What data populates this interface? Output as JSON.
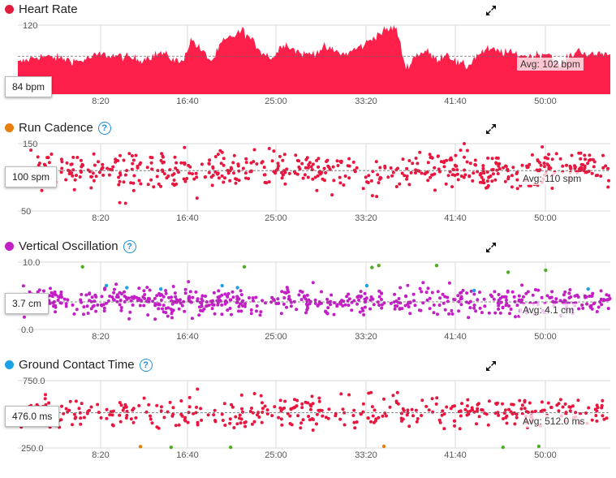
{
  "panels": [
    {
      "title": "Heart Rate",
      "dot_color": "#e01e3c",
      "help": false,
      "y_top": "120",
      "y_bottom": "80",
      "current": "84 bpm",
      "avg": "Avg: 102 bpm",
      "x_ticks": [
        "8:20",
        "16:40",
        "25:00",
        "33:20",
        "41:40",
        "50:00"
      ]
    },
    {
      "title": "Run Cadence",
      "dot_color": "#e87e0c",
      "help": true,
      "y_top": "150",
      "y_bottom": "50",
      "current": "100 spm",
      "avg": "Avg: 110 spm",
      "x_ticks": [
        "8:20",
        "16:40",
        "25:00",
        "33:20",
        "41:40",
        "50:00"
      ]
    },
    {
      "title": "Vertical Oscillation",
      "dot_color": "#c21fc4",
      "help": true,
      "y_top": "10.0",
      "y_bottom": "0.0",
      "current": "3.7 cm",
      "avg": "Avg: 4.1 cm",
      "x_ticks": [
        "8:20",
        "16:40",
        "25:00",
        "33:20",
        "41:40",
        "50:00"
      ]
    },
    {
      "title": "Ground Contact Time",
      "dot_color": "#1ba1e6",
      "help": true,
      "y_top": "750.0",
      "y_bottom": "250.0",
      "current": "476.0 ms",
      "avg": "Avg: 512.0 ms",
      "x_ticks": [
        "8:20",
        "16:40",
        "25:00",
        "33:20",
        "41:40",
        "50:00"
      ]
    }
  ],
  "colors": {
    "hr_fill": "#ff1f4b",
    "cadence": "#e8173f",
    "vo": "#c21fc4",
    "vo_blue": "#1ba1e6",
    "vo_green": "#4caf24",
    "gct": "#e8173f",
    "gct_green": "#4caf24",
    "gct_orange": "#e87e0c",
    "grid": "#d8d8d8",
    "avg_line": "#666666"
  },
  "chart_data": [
    {
      "type": "area",
      "title": "Heart Rate",
      "ylim": [
        80,
        120
      ],
      "xlim_seconds": [
        0,
        3480
      ],
      "avg": 102,
      "current": 84,
      "series": [
        {
          "name": "Heart Rate",
          "x": [
            0,
            120,
            240,
            360,
            480,
            600,
            720,
            840,
            960,
            1020,
            1080,
            1140,
            1200,
            1320,
            1440,
            1500,
            1560,
            1620,
            1680,
            1740,
            1800,
            1920,
            2040,
            2100,
            2160,
            2220,
            2280,
            2340,
            2400,
            2460,
            2520,
            2580,
            2640,
            2700,
            2760,
            2880,
            3000,
            3120,
            3180,
            3240,
            3300,
            3360,
            3420,
            3480
          ],
          "y": [
            98,
            102,
            101,
            99,
            103,
            102,
            100,
            104,
            98,
            112,
            105,
            99,
            110,
            117,
            104,
            101,
            110,
            106,
            103,
            104,
            107,
            103,
            109,
            114,
            117,
            119,
            95,
            103,
            105,
            100,
            104,
            98,
            96,
            103,
            106,
            104,
            102,
            104,
            96,
            102,
            106,
            102,
            104,
            103
          ]
        }
      ]
    },
    {
      "type": "scatter",
      "title": "Run Cadence",
      "ylim": [
        50,
        150
      ],
      "xlim_seconds": [
        0,
        3480
      ],
      "avg": 110,
      "current": 100,
      "series": [
        {
          "name": "Run Cadence",
          "trend": {
            "x": [
              0,
              600,
              1200,
              1800,
              2100,
              2400,
              2700,
              3000,
              3300,
              3480
            ],
            "y": [
              112,
              108,
              110,
              113,
              98,
              118,
              110,
              107,
              116,
              114
            ]
          },
          "spread": 12
        }
      ]
    },
    {
      "type": "scatter",
      "title": "Vertical Oscillation",
      "ylim": [
        0,
        10
      ],
      "xlim_seconds": [
        0,
        3480
      ],
      "avg": 4.1,
      "current": 3.7,
      "series": [
        {
          "name": "Vertical Oscillation",
          "trend": {
            "x": [
              0,
              3480
            ],
            "y": [
              4.2,
              4.1
            ]
          },
          "spread": 1.0
        }
      ],
      "outliers": [
        {
          "x": 380,
          "y": 9.3,
          "color": "green"
        },
        {
          "x": 520,
          "y": 6.5,
          "color": "blue"
        },
        {
          "x": 640,
          "y": 6.2,
          "color": "blue"
        },
        {
          "x": 840,
          "y": 6.0,
          "color": "blue"
        },
        {
          "x": 1200,
          "y": 6.5,
          "color": "blue"
        },
        {
          "x": 1290,
          "y": 6.2,
          "color": "blue"
        },
        {
          "x": 1330,
          "y": 9.3,
          "color": "green"
        },
        {
          "x": 2080,
          "y": 9.2,
          "color": "green"
        },
        {
          "x": 2120,
          "y": 9.5,
          "color": "green"
        },
        {
          "x": 2050,
          "y": 6.5,
          "color": "blue"
        },
        {
          "x": 2460,
          "y": 9.5,
          "color": "green"
        },
        {
          "x": 2680,
          "y": 5.8,
          "color": "blue"
        },
        {
          "x": 2880,
          "y": 8.5,
          "color": "green"
        },
        {
          "x": 3100,
          "y": 8.8,
          "color": "green"
        },
        {
          "x": 3350,
          "y": 6.0,
          "color": "blue"
        }
      ]
    },
    {
      "type": "scatter",
      "title": "Ground Contact Time",
      "ylim": [
        250,
        750
      ],
      "xlim_seconds": [
        0,
        3480
      ],
      "avg": 512,
      "current": 476,
      "series": [
        {
          "name": "Ground Contact Time",
          "trend": {
            "x": [
              0,
              3480
            ],
            "y": [
              505,
              515
            ]
          },
          "spread": 55
        }
      ],
      "outliers": [
        {
          "x": 720,
          "y": 260,
          "color": "orange"
        },
        {
          "x": 900,
          "y": 255,
          "color": "green"
        },
        {
          "x": 1250,
          "y": 255,
          "color": "green"
        },
        {
          "x": 2150,
          "y": 262,
          "color": "orange"
        },
        {
          "x": 2850,
          "y": 255,
          "color": "green"
        },
        {
          "x": 3060,
          "y": 262,
          "color": "green"
        }
      ]
    }
  ]
}
